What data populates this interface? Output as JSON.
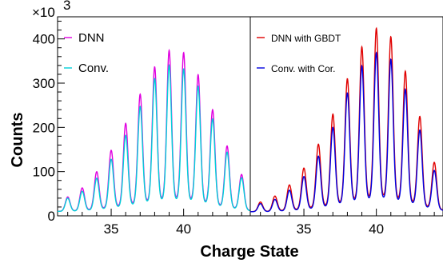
{
  "chart_data": {
    "type": "line",
    "xlabel": "Charge State",
    "ylabel": "Counts",
    "y_scale_label": "×10",
    "y_scale_exponent": "3",
    "xlim": [
      31.3,
      44.6
    ],
    "ylim": [
      0,
      450
    ],
    "x_ticks": [
      35,
      40
    ],
    "y_ticks": [
      0,
      100,
      200,
      300,
      400
    ],
    "grid": false,
    "peaks_x": [
      32,
      33,
      34,
      35,
      36,
      37,
      38,
      39,
      40,
      41,
      42,
      43,
      44
    ],
    "panels": [
      {
        "legend_position": "top-left",
        "series": [
          {
            "name": "DNN",
            "color": "#e000e0",
            "values": [
              30,
              42,
              75,
              117,
              175,
              240,
              308,
              360,
              375,
              340,
              268,
              178,
              108,
              52,
              20
            ]
          },
          {
            "name": "Conv.",
            "color": "#00d0d8",
            "values": [
              28,
              38,
              62,
              100,
              150,
              210,
              283,
              332,
              332,
              312,
              245,
              160,
              100,
              46,
              18
            ]
          }
        ]
      },
      {
        "legend_position": "top-left",
        "series": [
          {
            "name": "DNN with GBDT",
            "color": "#e00000",
            "values": [
              20,
              28,
              50,
              80,
              130,
              190,
              270,
              350,
              410,
              425,
              355,
              265,
              145,
              65,
              22
            ]
          },
          {
            "name": "Conv. with Cor.",
            "color": "#0000e0",
            "values": [
              18,
              22,
              40,
              65,
              105,
              160,
              240,
              315,
              355,
              370,
              310,
              230,
              120,
              57,
              18
            ]
          }
        ]
      }
    ]
  }
}
